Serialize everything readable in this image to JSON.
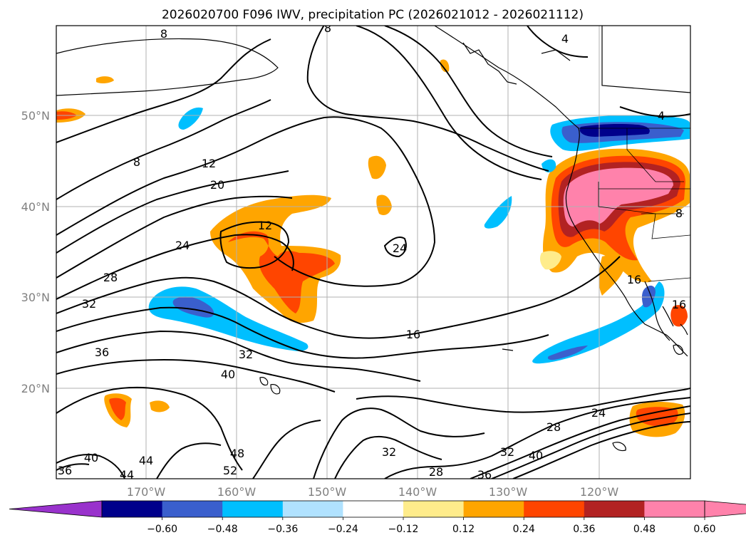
{
  "title": "2026020700 F096 IWV, precipitation PC (2026021012 - 2026021112)",
  "map": {
    "lat_labels": [
      "50°N",
      "40°N",
      "30°N",
      "20°N"
    ],
    "lon_labels": [
      "170°W",
      "160°W",
      "150°W",
      "140°W",
      "130°W",
      "120°W"
    ]
  },
  "colorbar": {
    "tick_labels": [
      "−0.60",
      "−0.48",
      "−0.36",
      "−0.24",
      "−0.12",
      "0.12",
      "0.24",
      "0.36",
      "0.48",
      "0.60"
    ],
    "colors": {
      "below": "#9932cc",
      "bins": [
        "#00008b",
        "#3a5fcd",
        "#00bfff",
        "#b0e2ff",
        "#ffffff",
        "#ffec8b",
        "#ffa500",
        "#ff4500",
        "#b22222",
        "#ff82ab"
      ],
      "above": "#ff82ab"
    }
  },
  "contour_labels": [
    {
      "text": "8"
    },
    {
      "text": "8"
    },
    {
      "text": "8"
    },
    {
      "text": "4"
    },
    {
      "text": "4"
    },
    {
      "text": "12"
    },
    {
      "text": "20"
    },
    {
      "text": "24"
    },
    {
      "text": "12"
    },
    {
      "text": "24"
    },
    {
      "text": "28"
    },
    {
      "text": "32"
    },
    {
      "text": "36"
    },
    {
      "text": "16"
    },
    {
      "text": "32"
    },
    {
      "text": "40"
    },
    {
      "text": "24"
    },
    {
      "text": "28"
    },
    {
      "text": "32"
    },
    {
      "text": "40"
    },
    {
      "text": "32"
    },
    {
      "text": "28"
    },
    {
      "text": "48"
    },
    {
      "text": "52"
    },
    {
      "text": "40"
    },
    {
      "text": "36"
    },
    {
      "text": "44"
    },
    {
      "text": "44"
    },
    {
      "text": "36"
    },
    {
      "text": "16"
    },
    {
      "text": "16"
    },
    {
      "text": "8"
    }
  ],
  "icons": {
    "colorbar_arrows": "triangle-arrow-icon"
  }
}
